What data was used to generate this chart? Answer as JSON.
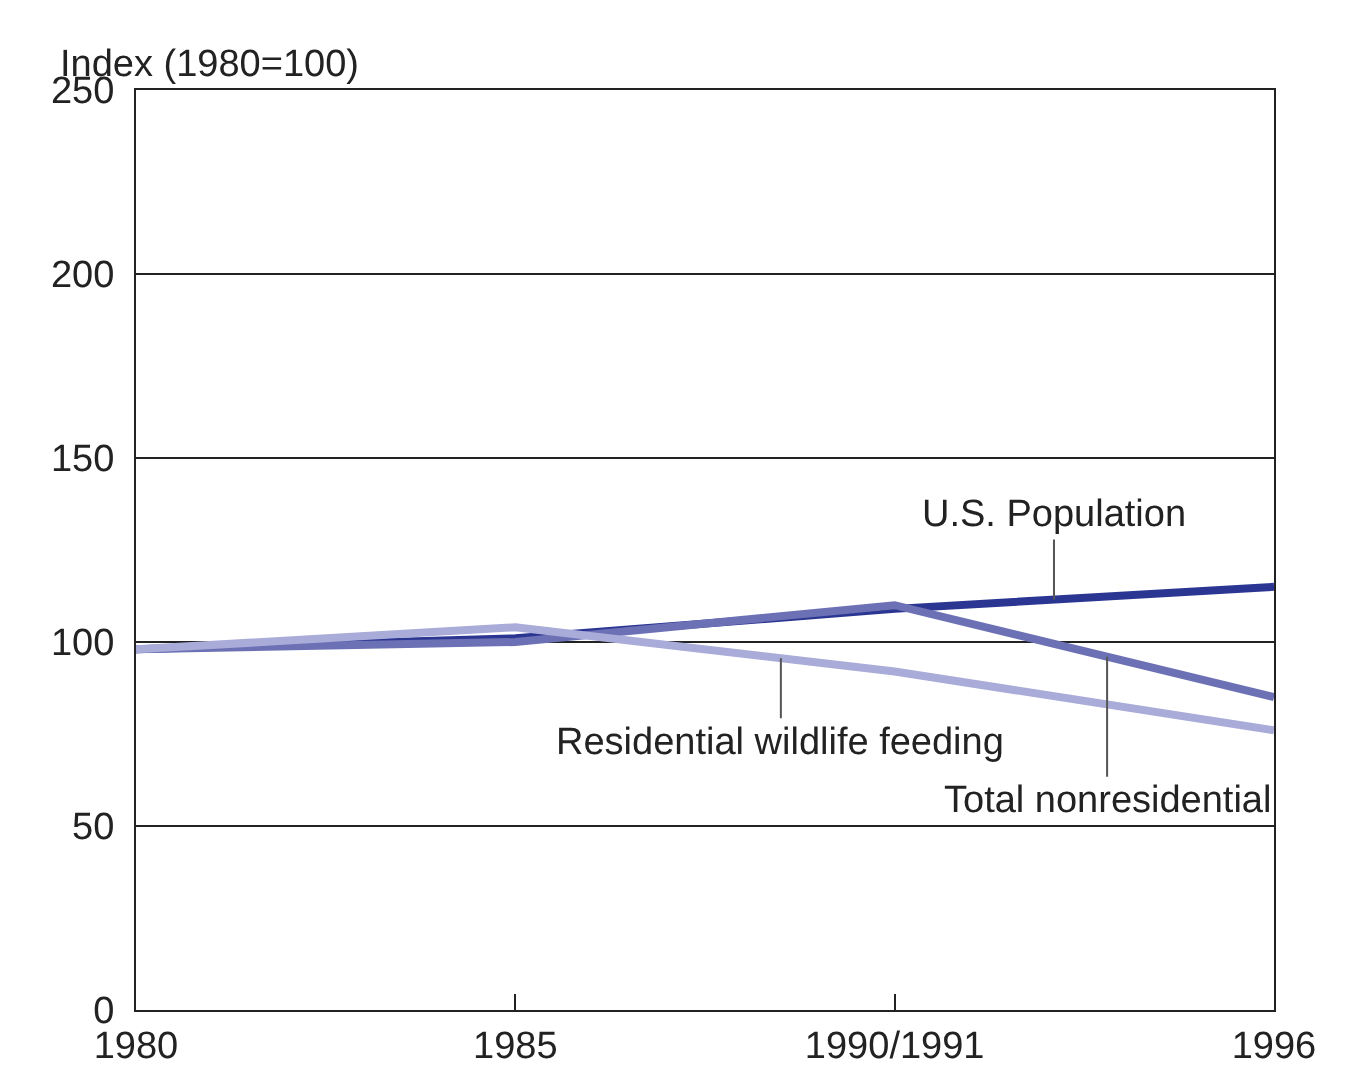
{
  "chart_data": {
    "type": "line",
    "ylabel": "Index (1980=100)",
    "categories": [
      "1980",
      "1985",
      "1990/1991",
      "1996"
    ],
    "series": [
      {
        "name": "U.S. Population",
        "color": "#2b3592",
        "values": [
          98,
          101,
          109,
          115
        ]
      },
      {
        "name": "Total nonresidential",
        "color": "#6c70b4",
        "values": [
          98,
          100,
          110,
          85
        ]
      },
      {
        "name": "Residential wildlife feeding",
        "color": "#a9abd8",
        "values": [
          98,
          104,
          92,
          76
        ]
      }
    ],
    "ylim": [
      0,
      250
    ],
    "yticks": [
      0,
      50,
      100,
      150,
      200,
      250
    ],
    "grid": "y",
    "legend": false,
    "marker": "none",
    "line_style": "solid"
  }
}
